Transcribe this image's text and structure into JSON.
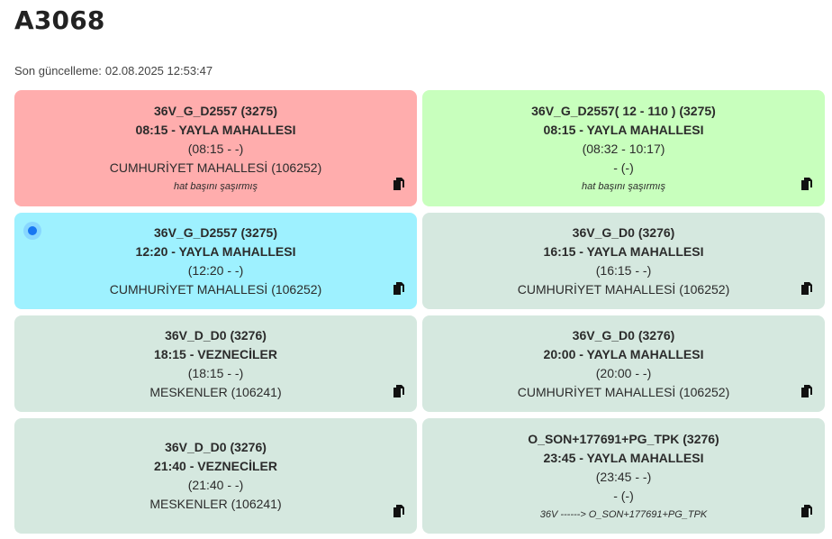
{
  "page": {
    "title": "A3068",
    "updated_label": "Son güncelleme:",
    "updated_value": "02.08.2025 12:53:47"
  },
  "colors": {
    "red": "#ffadad",
    "green": "#c8ffbd",
    "blue": "#9ef1ff",
    "grey": "#d5e8df",
    "indicator": "#1877f2"
  },
  "cards": [
    {
      "state": "red",
      "route": "36V_G_D2557 (3275)",
      "departure": "08:15 - YAYLA MAHALLESI",
      "times": "(08:15 - -)",
      "stop": "CUMHURİYET MAHALLESİ (106252)",
      "note": "hat başını şaşırmış",
      "icon": "copy-icon"
    },
    {
      "state": "green",
      "route": "36V_G_D2557( 12 - 110 ) (3275)",
      "departure": "08:15 - YAYLA MAHALLESI",
      "times": "(08:32 - 10:17)",
      "stop": "- (-)",
      "note": "hat başını şaşırmış",
      "icon": "copy-icon"
    },
    {
      "state": "blue",
      "route": "36V_G_D2557 (3275)",
      "departure": "12:20 - YAYLA MAHALLESI",
      "times": "(12:20 - -)",
      "stop": "CUMHURİYET MAHALLESİ (106252)",
      "note": "",
      "icon": "copy-icon",
      "active_indicator": true
    },
    {
      "state": "grey",
      "route": "36V_G_D0 (3276)",
      "departure": "16:15 - YAYLA MAHALLESI",
      "times": "(16:15 - -)",
      "stop": "CUMHURİYET MAHALLESİ (106252)",
      "note": "",
      "icon": "copy-icon"
    },
    {
      "state": "grey",
      "route": "36V_D_D0 (3276)",
      "departure": "18:15 - VEZNECİLER",
      "times": "(18:15 - -)",
      "stop": "MESKENLER (106241)",
      "note": "",
      "icon": "copy-icon"
    },
    {
      "state": "grey",
      "route": "36V_G_D0 (3276)",
      "departure": "20:00 - YAYLA MAHALLESI",
      "times": "(20:00 - -)",
      "stop": "CUMHURİYET MAHALLESİ (106252)",
      "note": "",
      "icon": "copy-icon"
    },
    {
      "state": "grey",
      "route": "36V_D_D0 (3276)",
      "departure": "21:40 - VEZNECİLER",
      "times": "(21:40 - -)",
      "stop": "MESKENLER (106241)",
      "note": "",
      "icon": "copy-icon"
    },
    {
      "state": "grey",
      "route": "O_SON+177691+PG_TPK (3276)",
      "departure": "23:45 - YAYLA MAHALLESI",
      "times": "(23:45 - -)",
      "stop": "- (-)",
      "note": "36V ------> O_SON+177691+PG_TPK",
      "icon": "copy-icon"
    }
  ]
}
